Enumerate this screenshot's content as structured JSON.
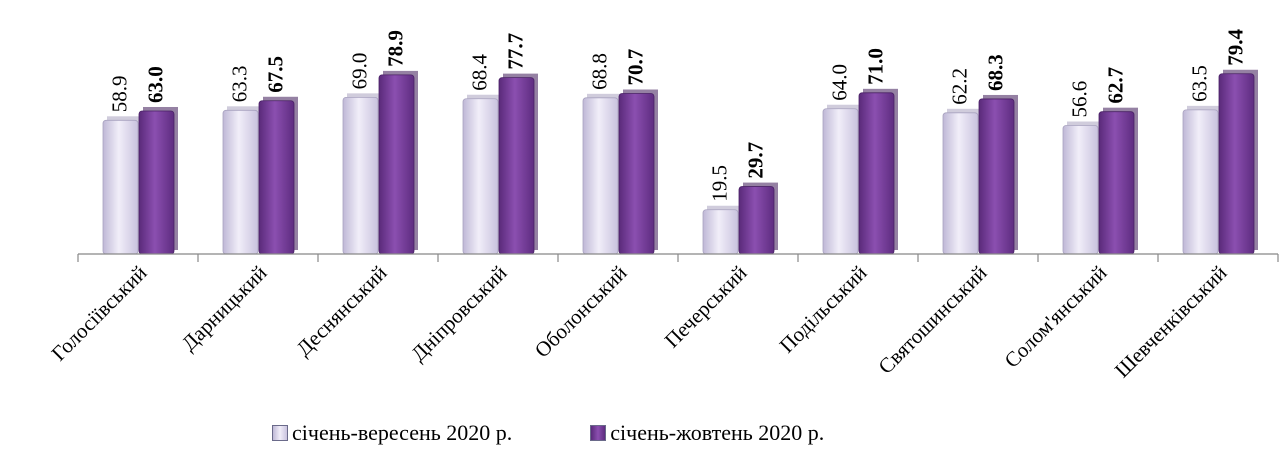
{
  "chart_data": {
    "type": "bar",
    "categories": [
      "Голосіївський",
      "Дарницький",
      "Деснянський",
      "Дніпровський",
      "Оболонський",
      "Печерський",
      "Подільський",
      "Святошинський",
      "Солом'янський",
      "Шевченківський"
    ],
    "series": [
      {
        "name": "січень-вересень 2020 р.",
        "values": [
          58.9,
          63.3,
          69.0,
          68.4,
          68.8,
          19.5,
          64.0,
          62.2,
          56.6,
          63.5
        ],
        "labels": [
          "58.9",
          "63.3",
          "69.0",
          "68.4",
          "68.8",
          "19.5",
          "64.0",
          "62.2",
          "56.6",
          "63.5"
        ],
        "color": "#d9d4ea"
      },
      {
        "name": "січень-жовтень 2020 р.",
        "values": [
          63.0,
          67.5,
          78.9,
          77.7,
          70.7,
          29.7,
          71.0,
          68.3,
          62.7,
          79.4
        ],
        "labels": [
          "63.0",
          "67.5",
          "78.9",
          "77.7",
          "70.7",
          "29.7",
          "71.0",
          "68.3",
          "62.7",
          "79.4"
        ],
        "color": "#7a3d9c"
      }
    ],
    "ylim": [
      0,
      90
    ],
    "grid": false,
    "legend_position": "bottom"
  }
}
